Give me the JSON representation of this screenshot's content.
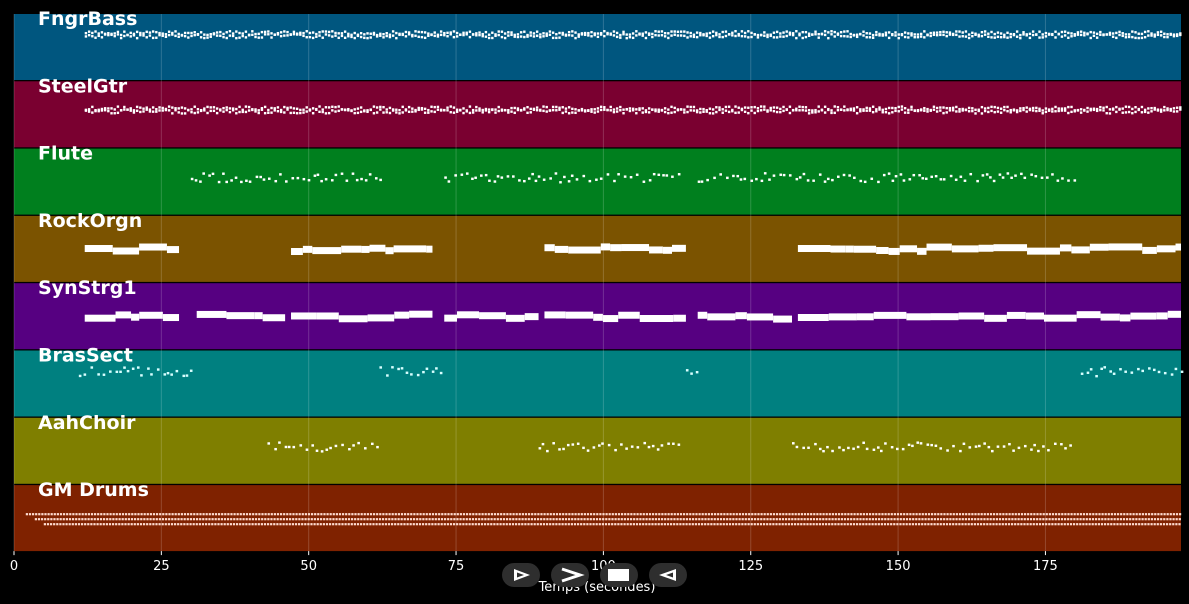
{
  "xaxis": {
    "label": "Temps (secondes)",
    "range": [
      0,
      198
    ],
    "ticks": [
      0,
      25,
      50,
      75,
      100,
      125,
      150,
      175
    ]
  },
  "tracks": [
    {
      "name": "FngrBass",
      "color": "#00567f",
      "note_color": "#ffffff",
      "style": "dense",
      "segments": [
        [
          12,
          198
        ]
      ]
    },
    {
      "name": "SteelGtr",
      "color": "#7a0030",
      "note_color": "#ffffff",
      "style": "dense",
      "segments": [
        [
          12,
          198
        ]
      ]
    },
    {
      "name": "Flute",
      "color": "#007f1e",
      "note_color": "#ffffff",
      "style": "sparse",
      "segments": [
        [
          30,
          62
        ],
        [
          73,
          113
        ],
        [
          116,
          180
        ]
      ]
    },
    {
      "name": "RockOrgn",
      "color": "#7b5300",
      "note_color": "#ffffff",
      "style": "block",
      "segments": [
        [
          12,
          28
        ],
        [
          47,
          71
        ],
        [
          90,
          114
        ],
        [
          133,
          198
        ]
      ]
    },
    {
      "name": "SynStrg1",
      "color": "#560081",
      "note_color": "#ffffff",
      "style": "block",
      "segments": [
        [
          12,
          28
        ],
        [
          31,
          46
        ],
        [
          47,
          71
        ],
        [
          73,
          89
        ],
        [
          90,
          114
        ],
        [
          116,
          132
        ],
        [
          133,
          198
        ]
      ]
    },
    {
      "name": "BrasSect",
      "color": "#008080",
      "note_color": "#d8ffff",
      "style": "sparse",
      "segments": [
        [
          11,
          30
        ],
        [
          62,
          73
        ],
        [
          114,
          116
        ],
        [
          181,
          198
        ]
      ]
    },
    {
      "name": "AahChoir",
      "color": "#7f7f00",
      "note_color": "#ffffff",
      "style": "sparse",
      "segments": [
        [
          43,
          62
        ],
        [
          89,
          113
        ],
        [
          132,
          180
        ]
      ]
    },
    {
      "name": "GM Drums",
      "color": "#7f2200",
      "note_color": "#ffdcd0",
      "style": "drums",
      "segments": [
        [
          2,
          198
        ]
      ]
    }
  ],
  "controls": [
    {
      "name": "play-button",
      "icon": "play-icon"
    },
    {
      "name": "fast-forward-button",
      "icon": "fast-forward-icon"
    },
    {
      "name": "stop-button",
      "icon": "stop-icon"
    },
    {
      "name": "rewind-button",
      "icon": "rewind-icon"
    }
  ]
}
